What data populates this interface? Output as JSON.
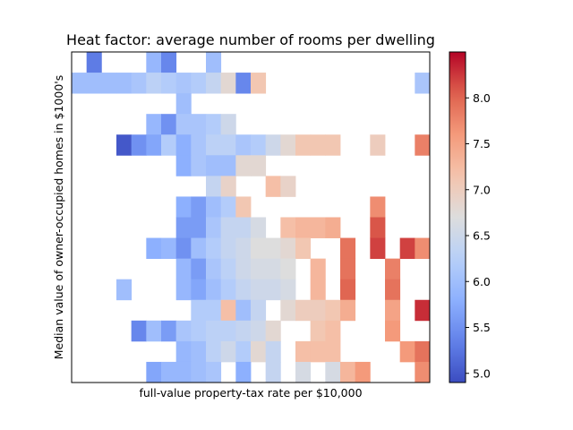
{
  "chart_data": {
    "type": "heatmap",
    "title": "Heat factor: average number of rooms per dwelling",
    "xlabel": "full-value property-tax rate per $10,000",
    "ylabel": "Median value of owner-occupied homes in $1000's",
    "colormap": "coolwarm",
    "vmin": 4.9,
    "vmax": 8.5,
    "colorbar_ticks": [
      "5.0",
      "5.5",
      "6.0",
      "6.5",
      "7.0",
      "7.5",
      "8.0"
    ],
    "n_cols": 24,
    "n_rows": 16,
    "grid": "off",
    "rows": [
      [
        null,
        5.3,
        null,
        null,
        null,
        5.9,
        5.4,
        null,
        null,
        6.0,
        null,
        null,
        null,
        null,
        null,
        null,
        null,
        null,
        null,
        null,
        null,
        null,
        null,
        null
      ],
      [
        6.0,
        6.0,
        6.0,
        6.0,
        6.1,
        6.3,
        6.2,
        6.1,
        6.2,
        6.4,
        6.8,
        5.4,
        7.1,
        null,
        null,
        null,
        null,
        null,
        null,
        null,
        null,
        null,
        null,
        6.1
      ],
      [
        null,
        null,
        null,
        null,
        null,
        null,
        null,
        6.0,
        null,
        null,
        null,
        null,
        null,
        null,
        null,
        null,
        null,
        null,
        null,
        null,
        null,
        null,
        null,
        null
      ],
      [
        null,
        null,
        null,
        null,
        null,
        5.9,
        5.5,
        6.1,
        6.1,
        6.2,
        6.5,
        null,
        null,
        null,
        null,
        null,
        null,
        null,
        null,
        null,
        null,
        null,
        null,
        null
      ],
      [
        null,
        null,
        null,
        5.0,
        5.5,
        5.7,
        6.2,
        5.8,
        6.1,
        6.3,
        6.3,
        6.1,
        6.2,
        6.5,
        6.8,
        7.1,
        7.1,
        7.1,
        null,
        null,
        7.0,
        null,
        null,
        7.8
      ],
      [
        null,
        null,
        null,
        null,
        null,
        null,
        null,
        5.8,
        6.1,
        6.0,
        6.0,
        6.8,
        6.8,
        null,
        null,
        null,
        null,
        null,
        null,
        null,
        null,
        null,
        null,
        null
      ],
      [
        null,
        null,
        null,
        null,
        null,
        null,
        null,
        null,
        null,
        6.4,
        6.9,
        null,
        null,
        7.2,
        6.9,
        null,
        null,
        null,
        null,
        null,
        null,
        null,
        null,
        null
      ],
      [
        null,
        null,
        null,
        null,
        null,
        null,
        null,
        5.8,
        5.6,
        6.0,
        6.2,
        7.1,
        null,
        null,
        null,
        null,
        null,
        null,
        null,
        null,
        7.7,
        null,
        null,
        null
      ],
      [
        null,
        null,
        null,
        null,
        null,
        null,
        null,
        5.6,
        5.6,
        6.1,
        6.4,
        6.4,
        6.6,
        null,
        7.2,
        7.3,
        7.3,
        7.4,
        null,
        null,
        8.1,
        null,
        null,
        null
      ],
      [
        null,
        null,
        null,
        null,
        null,
        5.8,
        5.9,
        5.5,
        6.0,
        6.2,
        6.4,
        6.5,
        6.7,
        6.7,
        6.8,
        7.1,
        null,
        null,
        7.9,
        null,
        8.2,
        null,
        8.2,
        7.7
      ],
      [
        null,
        null,
        null,
        null,
        null,
        null,
        null,
        5.9,
        5.6,
        6.1,
        6.3,
        6.5,
        6.6,
        6.6,
        6.7,
        null,
        7.3,
        null,
        7.9,
        null,
        null,
        7.8,
        null,
        null
      ],
      [
        null,
        null,
        null,
        6.0,
        null,
        null,
        null,
        5.9,
        5.7,
        6.0,
        6.2,
        6.4,
        6.5,
        6.5,
        6.6,
        null,
        7.3,
        null,
        8.0,
        null,
        null,
        7.9,
        null,
        null
      ],
      [
        null,
        null,
        null,
        null,
        null,
        null,
        null,
        null,
        6.2,
        6.2,
        7.2,
        6.0,
        6.4,
        null,
        6.8,
        7.0,
        7.0,
        7.1,
        7.4,
        null,
        null,
        7.5,
        null,
        8.3
      ],
      [
        null,
        null,
        null,
        null,
        5.4,
        6.0,
        5.6,
        6.1,
        6.2,
        6.3,
        6.3,
        6.4,
        6.5,
        6.8,
        null,
        null,
        7.1,
        7.2,
        null,
        null,
        null,
        7.6,
        null,
        null
      ],
      [
        null,
        null,
        null,
        null,
        null,
        null,
        null,
        5.9,
        6.0,
        6.3,
        6.5,
        6.2,
        6.8,
        6.4,
        null,
        7.2,
        7.2,
        7.2,
        null,
        null,
        null,
        null,
        7.6,
        7.9
      ],
      [
        null,
        null,
        null,
        null,
        null,
        5.7,
        5.9,
        5.9,
        6.0,
        6.1,
        null,
        5.8,
        null,
        6.4,
        null,
        6.6,
        null,
        6.6,
        7.3,
        7.6,
        null,
        null,
        null,
        7.7
      ]
    ]
  }
}
